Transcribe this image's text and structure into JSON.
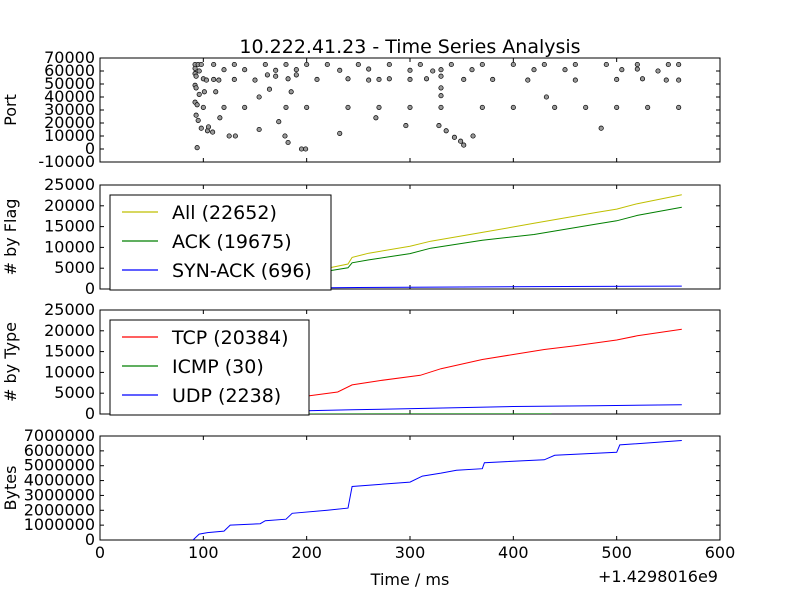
{
  "chart_data": {
    "title": "10.222.41.23 - Time Series Analysis",
    "xlabel": "Time / ms",
    "x_offset_label": "+1.4298016e9",
    "xlim": [
      0,
      600
    ],
    "xticks": [
      "0",
      "100",
      "200",
      "300",
      "400",
      "500",
      "600"
    ],
    "panels": [
      {
        "id": "port",
        "type": "scatter",
        "ylabel": "Port",
        "ylim": [
          -10000,
          70000
        ],
        "yticks": [
          "-10000",
          "0",
          "10000",
          "20000",
          "30000",
          "40000",
          "50000",
          "60000",
          "70000"
        ],
        "marker_color": "#999999",
        "series": [
          {
            "points": [
              [
                92,
                65000
              ],
              [
                95,
                65000
              ],
              [
                98,
                65000
              ],
              [
                110,
                65000
              ],
              [
                130,
                65000
              ],
              [
                160,
                65000
              ],
              [
                180,
                65000
              ],
              [
                200,
                65000
              ],
              [
                220,
                65000
              ],
              [
                250,
                65000
              ],
              [
                280,
                65000
              ],
              [
                310,
                65000
              ],
              [
                340,
                65000
              ],
              [
                370,
                65000
              ],
              [
                400,
                65000
              ],
              [
                430,
                65000
              ],
              [
                460,
                65000
              ],
              [
                490,
                65000
              ],
              [
                520,
                65000
              ],
              [
                550,
                65000
              ],
              [
                560,
                65000
              ],
              [
                92,
                62000
              ],
              [
                96,
                60000
              ],
              [
                120,
                61000
              ],
              [
                140,
                61000
              ],
              [
                170,
                60500
              ],
              [
                190,
                61000
              ],
              [
                232,
                60500
              ],
              [
                260,
                61500
              ],
              [
                300,
                60500
              ],
              [
                330,
                61000
              ],
              [
                360,
                61000
              ],
              [
                420,
                61000
              ],
              [
                450,
                61000
              ],
              [
                505,
                61000
              ],
              [
                520,
                61500
              ],
              [
                540,
                60000
              ],
              [
                92,
                58000
              ],
              [
                93,
                56000
              ],
              [
                100,
                54000
              ],
              [
                103,
                53000
              ],
              [
                110,
                53500
              ],
              [
                115,
                53000
              ],
              [
                130,
                53500
              ],
              [
                150,
                53000
              ],
              [
                162,
                57000
              ],
              [
                170,
                56000
              ],
              [
                182,
                54000
              ],
              [
                190,
                57000
              ],
              [
                210,
                53500
              ],
              [
                240,
                54000
              ],
              [
                260,
                53000
              ],
              [
                270,
                53500
              ],
              [
                280,
                54000
              ],
              [
                300,
                53500
              ],
              [
                316,
                54000
              ],
              [
                322,
                60000
              ],
              [
                330,
                56000
              ],
              [
                352,
                53500
              ],
              [
                380,
                53500
              ],
              [
                414,
                53000
              ],
              [
                460,
                53000
              ],
              [
                500,
                53500
              ],
              [
                525,
                54000
              ],
              [
                548,
                53000
              ],
              [
                560,
                53000
              ],
              [
                92,
                49000
              ],
              [
                93,
                47000
              ],
              [
                96,
                42000
              ],
              [
                101,
                44000
              ],
              [
                112,
                44000
              ],
              [
                154,
                40000
              ],
              [
                164,
                46000
              ],
              [
                185,
                44000
              ],
              [
                330,
                47000
              ],
              [
                330,
                41000
              ],
              [
                432,
                40000
              ],
              [
                92,
                36000
              ],
              [
                94,
                34000
              ],
              [
                100,
                32000
              ],
              [
                120,
                32000
              ],
              [
                140,
                32000
              ],
              [
                180,
                32000
              ],
              [
                200,
                32000
              ],
              [
                240,
                32000
              ],
              [
                270,
                32000
              ],
              [
                300,
                32000
              ],
              [
                330,
                32000
              ],
              [
                370,
                32000
              ],
              [
                400,
                32000
              ],
              [
                440,
                32000
              ],
              [
                470,
                32000
              ],
              [
                500,
                32000
              ],
              [
                530,
                32000
              ],
              [
                560,
                32000
              ],
              [
                93,
                26000
              ],
              [
                95,
                22000
              ],
              [
                98,
                16000
              ],
              [
                104,
                14000
              ],
              [
                116,
                24000
              ],
              [
                125,
                10000
              ],
              [
                131,
                10000
              ],
              [
                154,
                15000
              ],
              [
                173,
                21000
              ],
              [
                179,
                10000
              ],
              [
                182,
                5000
              ],
              [
                195,
                0
              ],
              [
                199,
                0
              ],
              [
                232,
                12000
              ],
              [
                267,
                24000
              ],
              [
                296,
                18000
              ],
              [
                328,
                18000
              ],
              [
                335,
                14000
              ],
              [
                343,
                9000
              ],
              [
                349,
                6000
              ],
              [
                352,
                3000
              ],
              [
                361,
                10000
              ],
              [
                485,
                16000
              ],
              [
                94,
                1000
              ],
              [
                105,
                17000
              ],
              [
                109,
                13000
              ]
            ]
          }
        ]
      },
      {
        "id": "flag",
        "type": "line",
        "ylabel": "# by Flag",
        "ylim": [
          0,
          25000
        ],
        "yticks": [
          "0",
          "5000",
          "10000",
          "15000",
          "20000",
          "25000"
        ],
        "legend_loc": "upper left",
        "series": [
          {
            "name": "All (22652)",
            "color": "#bfbf00",
            "points": [
              [
                90,
                0
              ],
              [
                100,
                600
              ],
              [
                120,
                1200
              ],
              [
                160,
                2300
              ],
              [
                190,
                3400
              ],
              [
                220,
                5000
              ],
              [
                240,
                6000
              ],
              [
                244,
                7600
              ],
              [
                260,
                8600
              ],
              [
                300,
                10300
              ],
              [
                320,
                11500
              ],
              [
                370,
                13600
              ],
              [
                420,
                15800
              ],
              [
                480,
                18400
              ],
              [
                500,
                19200
              ],
              [
                520,
                20500
              ],
              [
                563,
                22652
              ]
            ]
          },
          {
            "name": "ACK (19675)",
            "color": "#007f00",
            "points": [
              [
                90,
                0
              ],
              [
                100,
                500
              ],
              [
                120,
                1000
              ],
              [
                160,
                2000
              ],
              [
                190,
                3000
              ],
              [
                220,
                4300
              ],
              [
                240,
                5100
              ],
              [
                244,
                6300
              ],
              [
                260,
                7000
              ],
              [
                300,
                8500
              ],
              [
                320,
                9800
              ],
              [
                370,
                11700
              ],
              [
                420,
                13100
              ],
              [
                480,
                15600
              ],
              [
                500,
                16400
              ],
              [
                520,
                17700
              ],
              [
                563,
                19675
              ]
            ]
          },
          {
            "name": "SYN-ACK (696)",
            "color": "#0000ff",
            "points": [
              [
                90,
                0
              ],
              [
                150,
                150
              ],
              [
                250,
                350
              ],
              [
                350,
                480
              ],
              [
                450,
                600
              ],
              [
                563,
                696
              ]
            ]
          }
        ]
      },
      {
        "id": "type",
        "type": "line",
        "ylabel": "# by Type",
        "ylim": [
          0,
          25000
        ],
        "yticks": [
          "0",
          "5000",
          "10000",
          "15000",
          "20000",
          "25000"
        ],
        "legend_loc": "upper left",
        "series": [
          {
            "name": "TCP (20384)",
            "color": "#ff0000",
            "points": [
              [
                90,
                0
              ],
              [
                100,
                500
              ],
              [
                130,
                1200
              ],
              [
                160,
                2200
              ],
              [
                200,
                4300
              ],
              [
                230,
                5300
              ],
              [
                244,
                7000
              ],
              [
                270,
                8000
              ],
              [
                310,
                9300
              ],
              [
                330,
                10900
              ],
              [
                370,
                13100
              ],
              [
                400,
                14300
              ],
              [
                430,
                15500
              ],
              [
                460,
                16400
              ],
              [
                500,
                17800
              ],
              [
                520,
                18800
              ],
              [
                563,
                20384
              ]
            ]
          },
          {
            "name": "ICMP (30)",
            "color": "#007f00",
            "points": [
              [
                90,
                0
              ],
              [
                200,
                10
              ],
              [
                300,
                20
              ],
              [
                437,
                30
              ]
            ]
          },
          {
            "name": "UDP (2238)",
            "color": "#0000ff",
            "points": [
              [
                90,
                0
              ],
              [
                150,
                400
              ],
              [
                200,
                800
              ],
              [
                244,
                1000
              ],
              [
                320,
                1400
              ],
              [
                400,
                1800
              ],
              [
                480,
                2000
              ],
              [
                563,
                2238
              ]
            ]
          }
        ]
      },
      {
        "id": "bytes",
        "type": "line",
        "ylabel": "Bytes",
        "ylim": [
          0,
          7000000
        ],
        "yticks": [
          "0",
          "1000000",
          "2000000",
          "3000000",
          "4000000",
          "5000000",
          "6000000",
          "7000000"
        ],
        "series": [
          {
            "color": "#0000ff",
            "points": [
              [
                90,
                0
              ],
              [
                96,
                400000
              ],
              [
                104,
                500000
              ],
              [
                120,
                600000
              ],
              [
                126,
                1000000
              ],
              [
                155,
                1100000
              ],
              [
                160,
                1300000
              ],
              [
                180,
                1400000
              ],
              [
                186,
                1800000
              ],
              [
                220,
                2000000
              ],
              [
                240,
                2150000
              ],
              [
                244,
                3600000
              ],
              [
                300,
                3900000
              ],
              [
                312,
                4300000
              ],
              [
                330,
                4500000
              ],
              [
                345,
                4700000
              ],
              [
                370,
                4800000
              ],
              [
                372,
                5200000
              ],
              [
                430,
                5400000
              ],
              [
                440,
                5700000
              ],
              [
                500,
                5900000
              ],
              [
                503,
                6400000
              ],
              [
                563,
                6700000
              ]
            ]
          }
        ]
      }
    ]
  }
}
